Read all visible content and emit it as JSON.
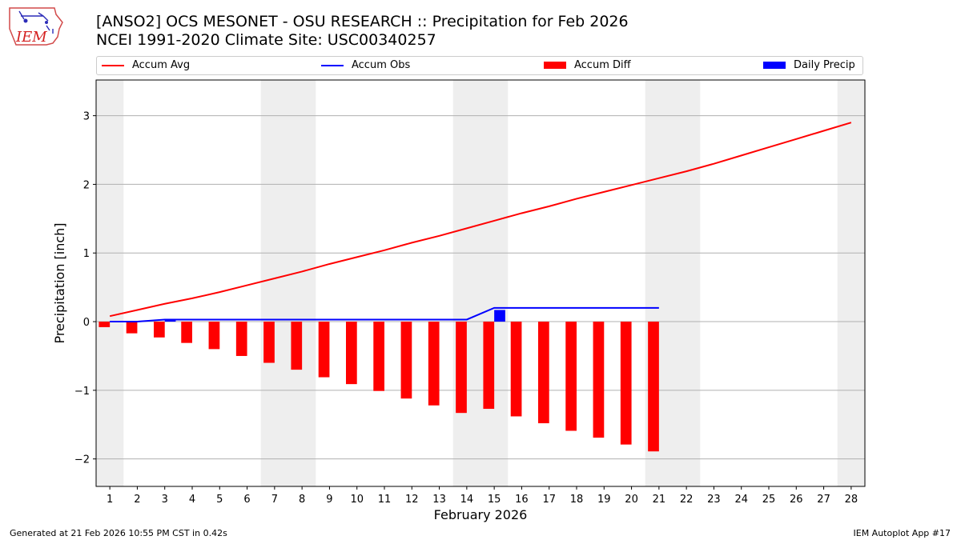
{
  "header": {
    "title_line1": "[ANSO2] OCS MESONET - OSU RESEARCH :: Precipitation for Feb 2026",
    "title_line2": "NCEI 1991-2020 Climate Site: USC00340257",
    "logo_text": "IEM"
  },
  "footer": {
    "generated": "Generated at 21 Feb 2026 10:55 PM CST in 0.42s",
    "app": "IEM Autoplot App #17"
  },
  "colors": {
    "avg": "#ff0000",
    "obs": "#0000ff",
    "diff": "#ff0000",
    "daily": "#0000ff",
    "weekend": "#eeeeee",
    "grid": "#b0b0b0"
  },
  "chart_data": {
    "type": "bar",
    "title": "[ANSO2] OCS MESONET - OSU RESEARCH :: Precipitation for Feb 2026",
    "xlabel": "February 2026",
    "ylabel": "Precipitation [inch]",
    "xlim": [
      0.5,
      28.5
    ],
    "ylim": [
      -2.4,
      3.52
    ],
    "yticks": [
      -2,
      -1,
      0,
      1,
      2,
      3
    ],
    "ytick_labels": [
      "−2",
      "−1",
      "0",
      "1",
      "2",
      "3"
    ],
    "xticks": [
      "1",
      "2",
      "3",
      "4",
      "5",
      "6",
      "7",
      "8",
      "9",
      "10",
      "11",
      "12",
      "13",
      "14",
      "15",
      "16",
      "17",
      "18",
      "19",
      "20",
      "21",
      "22",
      "23",
      "24",
      "25",
      "26",
      "27",
      "28"
    ],
    "grid": "horizontal",
    "legend_position": "top",
    "weekend_days": [
      1,
      7,
      8,
      14,
      15,
      21,
      22,
      28
    ],
    "series": [
      {
        "name": "Accum Avg",
        "type": "line",
        "x": [
          1,
          2,
          3,
          4,
          5,
          6,
          7,
          8,
          9,
          10,
          11,
          12,
          13,
          14,
          15,
          16,
          17,
          18,
          19,
          20,
          21,
          22,
          23,
          24,
          25,
          26,
          27,
          28
        ],
        "values": [
          0.08,
          0.17,
          0.26,
          0.34,
          0.43,
          0.53,
          0.63,
          0.73,
          0.84,
          0.94,
          1.04,
          1.15,
          1.25,
          1.36,
          1.47,
          1.58,
          1.68,
          1.79,
          1.89,
          1.99,
          2.09,
          2.19,
          2.3,
          2.42,
          2.54,
          2.66,
          2.78,
          2.9
        ]
      },
      {
        "name": "Accum Obs",
        "type": "line",
        "x": [
          1,
          2,
          3,
          4,
          5,
          6,
          7,
          8,
          9,
          10,
          11,
          12,
          13,
          14,
          15,
          16,
          17,
          18,
          19,
          20,
          21
        ],
        "values": [
          0.0,
          0.0,
          0.03,
          0.03,
          0.03,
          0.03,
          0.03,
          0.03,
          0.03,
          0.03,
          0.03,
          0.03,
          0.03,
          0.03,
          0.2,
          0.2,
          0.2,
          0.2,
          0.2,
          0.2,
          0.2
        ]
      },
      {
        "name": "Accum Diff",
        "type": "bar",
        "x": [
          1,
          2,
          3,
          4,
          5,
          6,
          7,
          8,
          9,
          10,
          11,
          12,
          13,
          14,
          15,
          16,
          17,
          18,
          19,
          20,
          21
        ],
        "values": [
          -0.08,
          -0.17,
          -0.23,
          -0.31,
          -0.4,
          -0.5,
          -0.6,
          -0.7,
          -0.81,
          -0.91,
          -1.01,
          -1.12,
          -1.22,
          -1.33,
          -1.27,
          -1.38,
          -1.48,
          -1.59,
          -1.69,
          -1.79,
          -1.89
        ]
      },
      {
        "name": "Daily Precip",
        "type": "bar",
        "x": [
          3,
          15
        ],
        "values": [
          0.03,
          0.17
        ]
      }
    ]
  }
}
